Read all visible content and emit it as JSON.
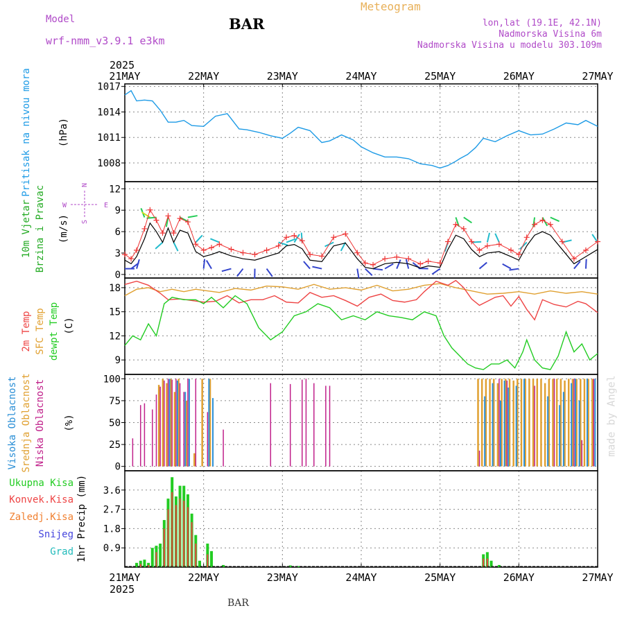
{
  "header": {
    "model_label": "Model",
    "model_name": "wrf-nmm_v3.9.1 e3km",
    "station": "BAR",
    "chart_title": "Meteogram",
    "lonlat": "lon,lat (19.1E, 42.1N)",
    "elevation": "Nadmorska Visina 6m",
    "model_elevation": "Nadmorska Visina u modelu 303.109m",
    "footer_station": "BAR",
    "signature": "made by Angel"
  },
  "colors": {
    "pressure": "#1e9be6",
    "wind_speed_label": "#22aa22",
    "wind_marker": "#ee3333",
    "t2m": "#ee4444",
    "sfc": "#e0a030",
    "dewpt": "#22cc22",
    "high_cloud": "#2b8fd6",
    "mid_cloud": "#e0a030",
    "low_cloud": "#c0208a",
    "ukupna": "#22cc22",
    "konvek": "#ee4444",
    "zaledj": "#f08030",
    "snijeg": "#4444dd",
    "grad": "#22bbbb",
    "compass": "#b04ac8",
    "signature": "#d8d8d8"
  },
  "chart_data": {
    "type": "meteogram",
    "time_axis": {
      "year": "2025",
      "ticks": [
        "21MAY",
        "22MAY",
        "23MAY",
        "24MAY",
        "25MAY",
        "26MAY",
        "27MAY"
      ],
      "range_days": [
        0,
        6
      ]
    },
    "panels": [
      {
        "id": "pressure",
        "type": "line",
        "ylabel": "(hPa)",
        "title": "Pritisak na nivou mora",
        "ylim": [
          1005.8,
          1017.3
        ],
        "yticks": [
          1008,
          1011,
          1014,
          1017
        ],
        "series": [
          {
            "name": "MSLP",
            "x": [
              0,
              0.08,
              0.15,
              0.25,
              0.35,
              0.45,
              0.55,
              0.65,
              0.75,
              0.85,
              1.0,
              1.15,
              1.3,
              1.45,
              1.55,
              1.7,
              1.85,
              2.0,
              2.1,
              2.2,
              2.35,
              2.5,
              2.6,
              2.75,
              2.9,
              3.0,
              3.15,
              3.3,
              3.45,
              3.6,
              3.75,
              3.9,
              4.0,
              4.1,
              4.2,
              4.25,
              4.35,
              4.45,
              4.55,
              4.7,
              4.85,
              5.0,
              5.15,
              5.3,
              5.45,
              5.6,
              5.75,
              5.85,
              6.0
            ],
            "values": [
              1016.0,
              1016.5,
              1015.3,
              1015.4,
              1015.3,
              1014.2,
              1012.8,
              1012.8,
              1013.0,
              1012.4,
              1012.3,
              1013.5,
              1013.8,
              1012.0,
              1011.9,
              1011.6,
              1011.2,
              1010.9,
              1011.5,
              1012.2,
              1011.8,
              1010.4,
              1010.6,
              1011.3,
              1010.7,
              1009.9,
              1009.2,
              1008.7,
              1008.7,
              1008.5,
              1007.9,
              1007.7,
              1007.4,
              1007.7,
              1008.2,
              1008.5,
              1009.0,
              1009.8,
              1010.9,
              1010.5,
              1011.2,
              1011.8,
              1011.3,
              1011.4,
              1012.0,
              1012.7,
              1012.5,
              1013.0,
              1012.3
            ]
          }
        ]
      },
      {
        "id": "wind",
        "type": "line_with_arrows",
        "ylabel": "(m/s)",
        "title": [
          "10m Vjetar",
          "Brzina i Pravac"
        ],
        "ylim": [
          -0.5,
          13
        ],
        "yticks": [
          0,
          3,
          6,
          9,
          12
        ],
        "compass": {
          "north": "N",
          "south": "S",
          "west": "W",
          "east": "E"
        },
        "series": [
          {
            "name": "wind_speed",
            "x": [
              0,
              0.08,
              0.15,
              0.25,
              0.32,
              0.4,
              0.48,
              0.55,
              0.62,
              0.7,
              0.8,
              0.9,
              1.0,
              1.1,
              1.2,
              1.35,
              1.5,
              1.65,
              1.8,
              1.95,
              2.05,
              2.15,
              2.25,
              2.35,
              2.5,
              2.65,
              2.8,
              2.95,
              3.05,
              3.15,
              3.3,
              3.45,
              3.6,
              3.75,
              3.85,
              4.0,
              4.1,
              4.2,
              4.3,
              4.4,
              4.5,
              4.6,
              4.75,
              4.9,
              5.0,
              5.1,
              5.2,
              5.3,
              5.4,
              5.55,
              5.7,
              5.85,
              6.0
            ],
            "values": [
              2.0,
              1.5,
              2.5,
              5.0,
              7.2,
              6.0,
              4.5,
              6.5,
              4.5,
              6.2,
              5.8,
              3.2,
              2.5,
              2.8,
              3.2,
              2.6,
              2.2,
              2.0,
              2.5,
              3.0,
              4.0,
              4.2,
              3.6,
              2.0,
              1.8,
              4.0,
              4.4,
              2.2,
              1.0,
              0.8,
              1.5,
              1.7,
              1.5,
              0.9,
              1.2,
              1.0,
              3.5,
              5.5,
              5.0,
              3.5,
              2.5,
              3.0,
              3.2,
              2.5,
              2.0,
              4.0,
              5.5,
              6.0,
              5.5,
              3.5,
              1.5,
              2.5,
              3.5
            ]
          }
        ]
      },
      {
        "id": "temperature",
        "type": "line",
        "ylabel": "(C)",
        "title": [
          "2m Temp",
          "SFC Temp",
          "dewpt Temp"
        ],
        "ylim": [
          7.2,
          19.2
        ],
        "yticks": [
          9,
          12,
          15,
          18
        ],
        "series": [
          {
            "name": "2m Temp",
            "x": [
              0,
              0.15,
              0.3,
              0.45,
              0.55,
              0.7,
              0.85,
              1.0,
              1.15,
              1.3,
              1.45,
              1.6,
              1.75,
              1.9,
              2.05,
              2.2,
              2.35,
              2.5,
              2.65,
              2.8,
              2.95,
              3.1,
              3.25,
              3.4,
              3.55,
              3.7,
              3.8,
              3.95,
              4.1,
              4.2,
              4.3,
              4.4,
              4.5,
              4.6,
              4.7,
              4.8,
              4.9,
              5.0,
              5.1,
              5.2,
              5.3,
              5.45,
              5.6,
              5.75,
              5.85,
              6.0
            ],
            "values": [
              18.4,
              18.8,
              18.3,
              17.3,
              16.5,
              16.6,
              16.4,
              16.2,
              16.3,
              17.0,
              16.1,
              16.5,
              16.5,
              17.0,
              16.2,
              16.1,
              17.4,
              16.8,
              17.0,
              16.4,
              15.7,
              16.8,
              17.2,
              16.4,
              16.2,
              16.5,
              17.5,
              18.8,
              18.3,
              18.9,
              18.0,
              16.6,
              15.8,
              16.3,
              16.8,
              17.0,
              15.7,
              16.9,
              15.3,
              14.0,
              16.5,
              15.9,
              15.6,
              16.3,
              16.0,
              14.9
            ]
          },
          {
            "name": "SFC Temp",
            "x": [
              0,
              0.15,
              0.3,
              0.45,
              0.6,
              0.75,
              0.9,
              1.05,
              1.2,
              1.4,
              1.6,
              1.8,
              2.0,
              2.2,
              2.4,
              2.6,
              2.8,
              3.0,
              3.2,
              3.4,
              3.6,
              3.8,
              4.0,
              4.2,
              4.4,
              4.6,
              4.8,
              5.0,
              5.2,
              5.4,
              5.6,
              5.8,
              6.0
            ],
            "values": [
              17.0,
              17.8,
              18.0,
              17.5,
              17.8,
              17.5,
              17.8,
              17.6,
              17.4,
              17.9,
              17.7,
              18.2,
              18.1,
              17.8,
              18.4,
              17.8,
              18.0,
              17.7,
              18.3,
              17.6,
              17.8,
              18.3,
              18.5,
              18.0,
              17.6,
              17.2,
              17.3,
              17.5,
              17.2,
              17.6,
              17.3,
              17.5,
              17.2
            ]
          },
          {
            "name": "dewpt Temp",
            "x": [
              0,
              0.1,
              0.2,
              0.3,
              0.4,
              0.5,
              0.6,
              0.75,
              0.9,
              1.0,
              1.1,
              1.25,
              1.4,
              1.55,
              1.7,
              1.85,
              2.0,
              2.15,
              2.3,
              2.45,
              2.6,
              2.75,
              2.9,
              3.05,
              3.2,
              3.35,
              3.5,
              3.65,
              3.8,
              3.95,
              4.05,
              4.15,
              4.25,
              4.35,
              4.45,
              4.55,
              4.65,
              4.75,
              4.85,
              4.95,
              5.05,
              5.1,
              5.2,
              5.3,
              5.4,
              5.5,
              5.6,
              5.7,
              5.8,
              5.9,
              6.0
            ],
            "values": [
              10.8,
              12.0,
              11.5,
              13.5,
              12.0,
              16.0,
              16.8,
              16.5,
              16.5,
              16.0,
              16.8,
              15.5,
              17.0,
              16.0,
              13.0,
              11.5,
              12.5,
              14.5,
              15.0,
              16.0,
              15.5,
              14.0,
              14.5,
              14.0,
              15.0,
              14.5,
              14.3,
              14.0,
              15.0,
              14.5,
              12.0,
              10.5,
              9.5,
              8.5,
              8.0,
              7.8,
              8.5,
              8.5,
              9.0,
              8.0,
              10.0,
              11.5,
              9.0,
              8.0,
              7.8,
              9.5,
              12.5,
              10.0,
              11.0,
              9.0,
              9.8
            ]
          }
        ]
      },
      {
        "id": "cloud",
        "type": "bar",
        "ylabel": "(%)",
        "title": [
          "Visoka Oblacnost",
          "Srednja Oblacnost",
          "Niska Oblacnost"
        ],
        "ylim": [
          -5,
          105
        ],
        "yticks": [
          0,
          25,
          50,
          75,
          100
        ],
        "series": [
          {
            "name": "Niska Oblacnost",
            "x": [
              0.1,
              0.2,
              0.25,
              0.35,
              0.4,
              0.45,
              0.5,
              0.55,
              0.6,
              0.65,
              0.7,
              0.75,
              0.8,
              0.9,
              1.05,
              1.25,
              1.85,
              2.1,
              2.25,
              2.3,
              2.4,
              2.55,
              2.6,
              4.5,
              4.75,
              4.85,
              5.2,
              5.45,
              5.7,
              5.8,
              5.95
            ],
            "values": [
              32,
              70,
              72,
              65,
              82,
              91,
              98,
              100,
              99,
              100,
              95,
              85,
              100,
              100,
              62,
              42,
              95,
              94,
              99,
              100,
              95,
              92,
              92,
              18,
              100,
              98,
              92,
              100,
              100,
              30,
              100
            ]
          },
          {
            "name": "Srednja Oblacnost",
            "x": [
              0.45,
              0.5,
              0.55,
              0.6,
              0.65,
              0.7,
              0.8,
              0.9,
              1.0,
              1.1,
              4.5,
              4.55,
              4.6,
              4.65,
              4.7,
              4.75,
              4.8,
              4.85,
              4.9,
              4.95,
              5.0,
              5.05,
              5.1,
              5.15,
              5.2,
              5.25,
              5.3,
              5.35,
              5.4,
              5.45,
              5.5,
              5.55,
              5.6,
              5.65,
              5.7,
              5.75,
              5.8,
              5.85,
              5.9,
              5.95
            ],
            "values": [
              93,
              100,
              95,
              100,
              85,
              100,
              75,
              15,
              100,
              100,
              100,
              100,
              100,
              100,
              100,
              95,
              100,
              100,
              100,
              98,
              100,
              100,
              100,
              100,
              100,
              100,
              100,
              95,
              100,
              100,
              100,
              100,
              98,
              100,
              100,
              100,
              100,
              100,
              100,
              100
            ]
          },
          {
            "name": "Visoka Oblacnost",
            "x": [
              0.55,
              0.65,
              0.75,
              0.8,
              1.05,
              1.1,
              4.55,
              4.65,
              4.75,
              4.8,
              4.85,
              4.95,
              5.05,
              5.35,
              5.5,
              5.55,
              5.65,
              5.7,
              5.75,
              5.85,
              5.95
            ],
            "values": [
              100,
              98,
              85,
              100,
              100,
              78,
              80,
              95,
              75,
              98,
              90,
              92,
              100,
              80,
              70,
              85,
              95,
              100,
              75,
              100,
              100
            ]
          }
        ]
      },
      {
        "id": "precip",
        "type": "bar",
        "ylabel": "1hr Precip (mm)",
        "title": [
          "Ukupna Kisa",
          "Konvek.Kisa",
          "Zaledj.Kisa",
          "Snijeg",
          "Grad"
        ],
        "ylim": [
          0,
          4.5
        ],
        "yticks": [
          0.9,
          1.8,
          2.7,
          3.6
        ],
        "series": [
          {
            "name": "Ukupna Kisa",
            "x": [
              0.15,
              0.2,
              0.25,
              0.3,
              0.35,
              0.4,
              0.45,
              0.5,
              0.55,
              0.6,
              0.65,
              0.7,
              0.75,
              0.8,
              0.85,
              0.9,
              0.95,
              1.05,
              1.1,
              1.25,
              2.1,
              2.2,
              4.55,
              4.6,
              4.65,
              4.75
            ],
            "values": [
              0.2,
              0.3,
              0.35,
              0.2,
              0.9,
              1.0,
              1.1,
              2.2,
              3.2,
              4.2,
              3.3,
              3.8,
              3.8,
              3.4,
              2.5,
              1.5,
              0.3,
              1.1,
              0.75,
              0.1,
              0.08,
              0.05,
              0.6,
              0.7,
              0.3,
              0.1
            ]
          },
          {
            "name": "Konvek.Kisa",
            "x": [
              0.2,
              0.3,
              0.4,
              0.5,
              0.55,
              0.6,
              0.65,
              0.7,
              0.75,
              0.8,
              0.85,
              0.9,
              1.05,
              4.55,
              4.6
            ],
            "values": [
              0.15,
              0.1,
              0.7,
              1.8,
              2.7,
              3.5,
              2.9,
              3.2,
              3.1,
              2.8,
              2.1,
              1.1,
              0.6,
              0.4,
              0.4
            ]
          }
        ]
      }
    ]
  }
}
